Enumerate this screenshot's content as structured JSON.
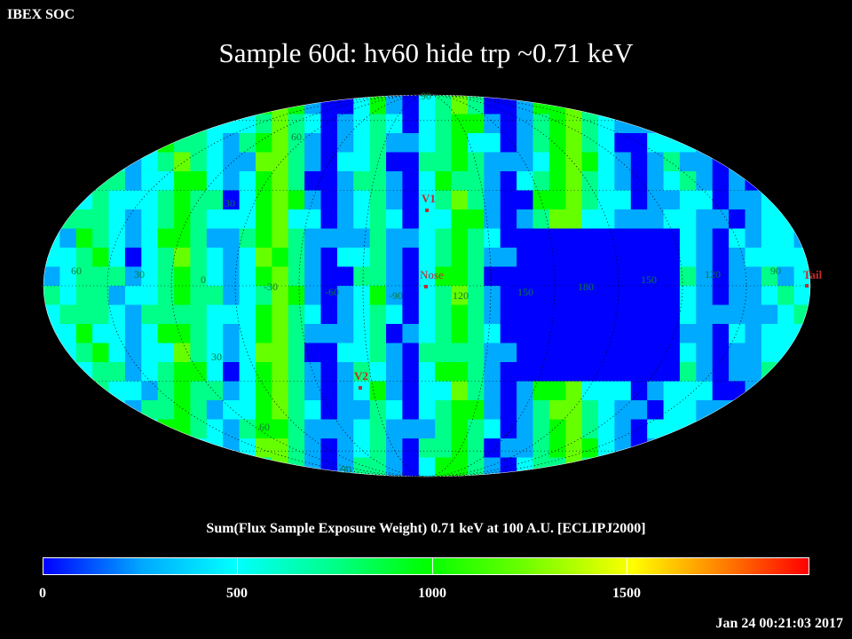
{
  "header": {
    "org": "IBEX SOC",
    "title": "Sample 60d: hv60 hide trp ~0.71 keV"
  },
  "map": {
    "projection": "Mollweide (Aitoff-style ellipse)",
    "coordinate_frame": "ECLIPJ2000",
    "lat_labels": [
      "90",
      "60",
      "30",
      "30",
      "60",
      "90"
    ],
    "lon_labels": [
      "60",
      "30",
      "0",
      "-30",
      "-60",
      "-90",
      "120",
      "150",
      "180",
      "150",
      "120",
      "90"
    ],
    "markers": [
      {
        "name": "V1",
        "color": "#c62a2a"
      },
      {
        "name": "Nose",
        "color": "#c62a2a"
      },
      {
        "name": "V2",
        "color": "#c62a2a"
      },
      {
        "name": "Tail",
        "color": "#c62a2a"
      }
    ]
  },
  "colorbar": {
    "title": "Sum(Flux Sample Exposure Weight)  0.71 keV at 100 A.U. [ECLIPJ2000]",
    "ticks": [
      "0",
      "500",
      "1000",
      "1500"
    ],
    "min": 0,
    "max": 2000,
    "colors": [
      "#0000ff",
      "#00aaff",
      "#00ffff",
      "#00ff88",
      "#00ff00",
      "#66ff00",
      "#ffff00",
      "#ff8800",
      "#ff0000"
    ]
  },
  "footer": {
    "timestamp": "Jan 24 00:21:03 2017"
  }
}
